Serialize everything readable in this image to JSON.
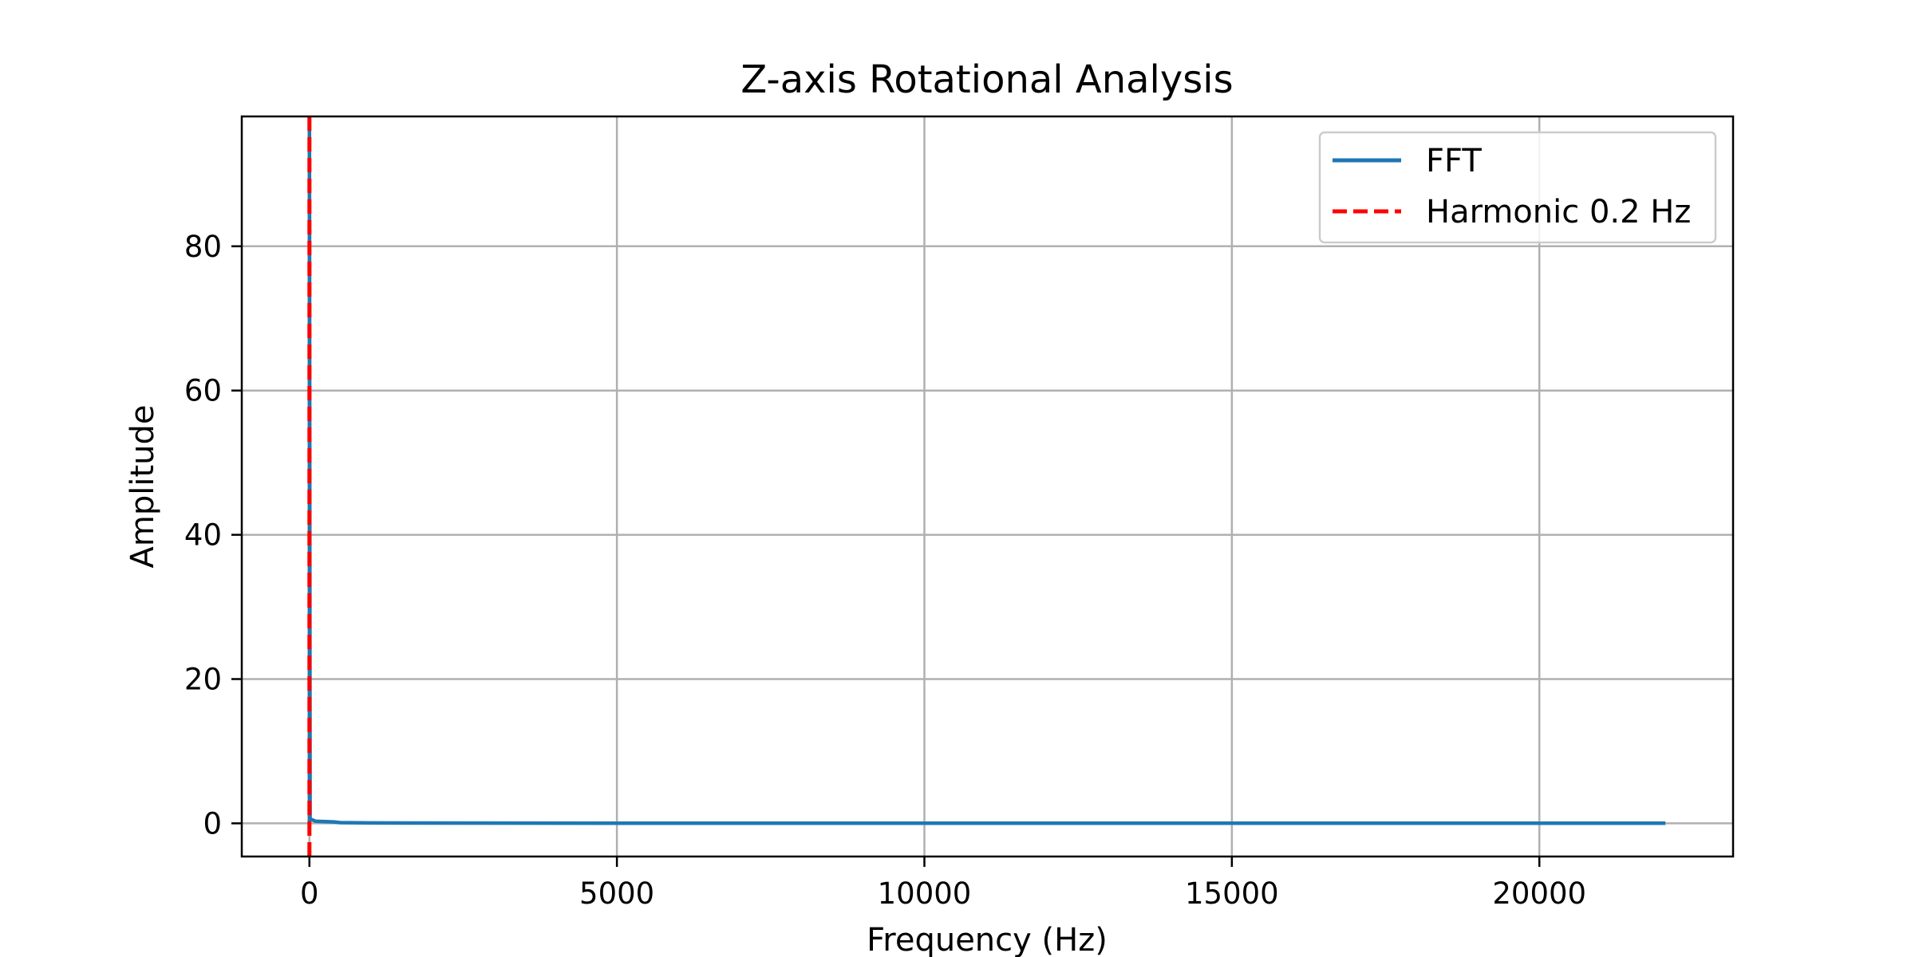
{
  "chart_data": {
    "type": "line",
    "title": "Z-axis Rotational Analysis",
    "xlabel": "Frequency (Hz)",
    "ylabel": "Amplitude",
    "xlim": [
      -1100,
      23150
    ],
    "ylim": [
      -4.6,
      98
    ],
    "x_ticks": [
      0,
      5000,
      10000,
      15000,
      20000
    ],
    "y_ticks": [
      0,
      20,
      40,
      60,
      80
    ],
    "grid": true,
    "legend_position": "top-right",
    "series": [
      {
        "name": "FFT",
        "color": "#1f77b4",
        "style": "solid",
        "x": [
          0,
          0.2,
          10,
          100,
          400,
          500,
          1000,
          5000,
          10000,
          15000,
          20000,
          22050
        ],
        "y": [
          0,
          98,
          0.6,
          0.3,
          0.2,
          0.1,
          0.05,
          0.02,
          0.01,
          0.01,
          0.01,
          0.01
        ]
      }
    ],
    "annotations": [
      {
        "name": "Harmonic 0.2 Hz",
        "type": "vline",
        "x": 0.2,
        "color": "#ff0000",
        "style": "dashed"
      }
    ]
  }
}
